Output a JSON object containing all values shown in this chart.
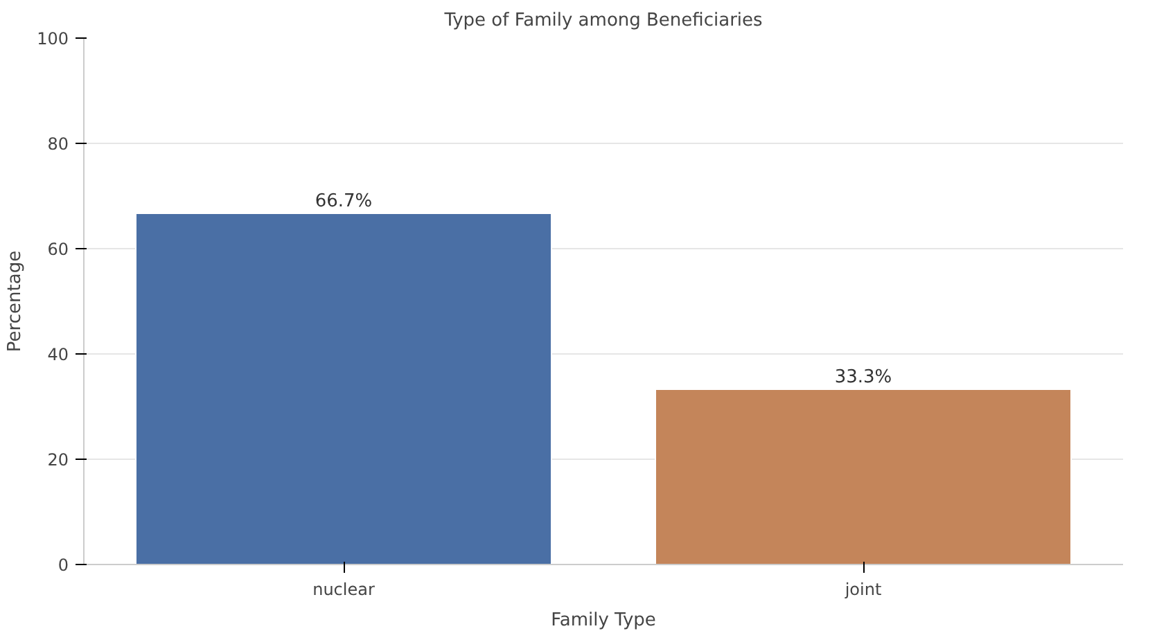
{
  "chart_data": {
    "type": "bar",
    "title": "Type of Family among Beneficiaries",
    "xlabel": "Family Type",
    "ylabel": "Percentage",
    "categories": [
      "nuclear",
      "joint"
    ],
    "values": [
      66.7,
      33.3
    ],
    "colors": [
      "#4a6fa5",
      "#c4855a"
    ],
    "value_labels": [
      "66.7%",
      "33.3%"
    ],
    "ylim": [
      0,
      100
    ],
    "yticks": [
      0,
      20,
      40,
      60,
      80,
      100
    ],
    "grid": "y"
  }
}
